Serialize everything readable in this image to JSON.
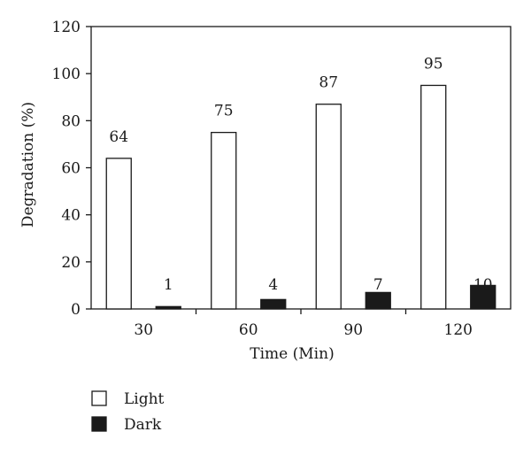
{
  "chart_data": {
    "type": "bar",
    "title": "",
    "xlabel": "Time (Min)",
    "ylabel": "Degradation (%)",
    "categories": [
      "30",
      "60",
      "90",
      "120"
    ],
    "ylim": [
      0,
      120
    ],
    "yticks": [
      "0",
      "20",
      "40",
      "60",
      "80",
      "100",
      "120"
    ],
    "grid": false,
    "legend_position": "bottom-left",
    "series": [
      {
        "name": "Light",
        "color": "#ffffff",
        "stroke": "#1a1a1a",
        "values": [
          64,
          75,
          87,
          95
        ],
        "labels": [
          "64",
          "75",
          "87",
          "95"
        ]
      },
      {
        "name": "Dark",
        "color": "#1a1a1a",
        "stroke": "#1a1a1a",
        "values": [
          1,
          4,
          7,
          10
        ],
        "labels": [
          "1",
          "4",
          "7",
          "10"
        ]
      }
    ]
  }
}
